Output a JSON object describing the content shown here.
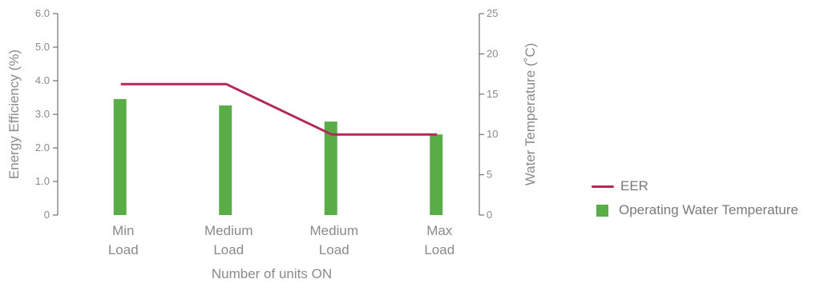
{
  "chart_data": {
    "type": "bar+line",
    "categories": [
      [
        "Min",
        "Load"
      ],
      [
        "Medium",
        "Load"
      ],
      [
        "Medium",
        "Load"
      ],
      [
        "Max",
        "Load"
      ]
    ],
    "xlabel": "Number of units ON",
    "ylabel_left": "Energy Efficiency (%)",
    "ylabel_right": "Water Temperature (˚C)",
    "y_left": {
      "range": [
        0,
        6
      ],
      "ticks": [
        "0",
        "1.0",
        "2.0",
        "3.0",
        "4.0",
        "5.0",
        "6.0"
      ]
    },
    "y_right": {
      "range": [
        0,
        25
      ],
      "ticks": [
        "0",
        "5",
        "10",
        "15",
        "20",
        "25"
      ]
    },
    "series": [
      {
        "name": "EER",
        "type": "line",
        "axis": "left",
        "color": "#b5285a",
        "values": [
          3.9,
          3.9,
          2.4,
          2.4
        ]
      },
      {
        "name": "Operating Water Temperature",
        "type": "bar",
        "axis": "right",
        "color": "#58ad46",
        "values": [
          14.4,
          13.6,
          11.6,
          10.0
        ]
      }
    ],
    "legend_position": "right",
    "grid": false
  }
}
